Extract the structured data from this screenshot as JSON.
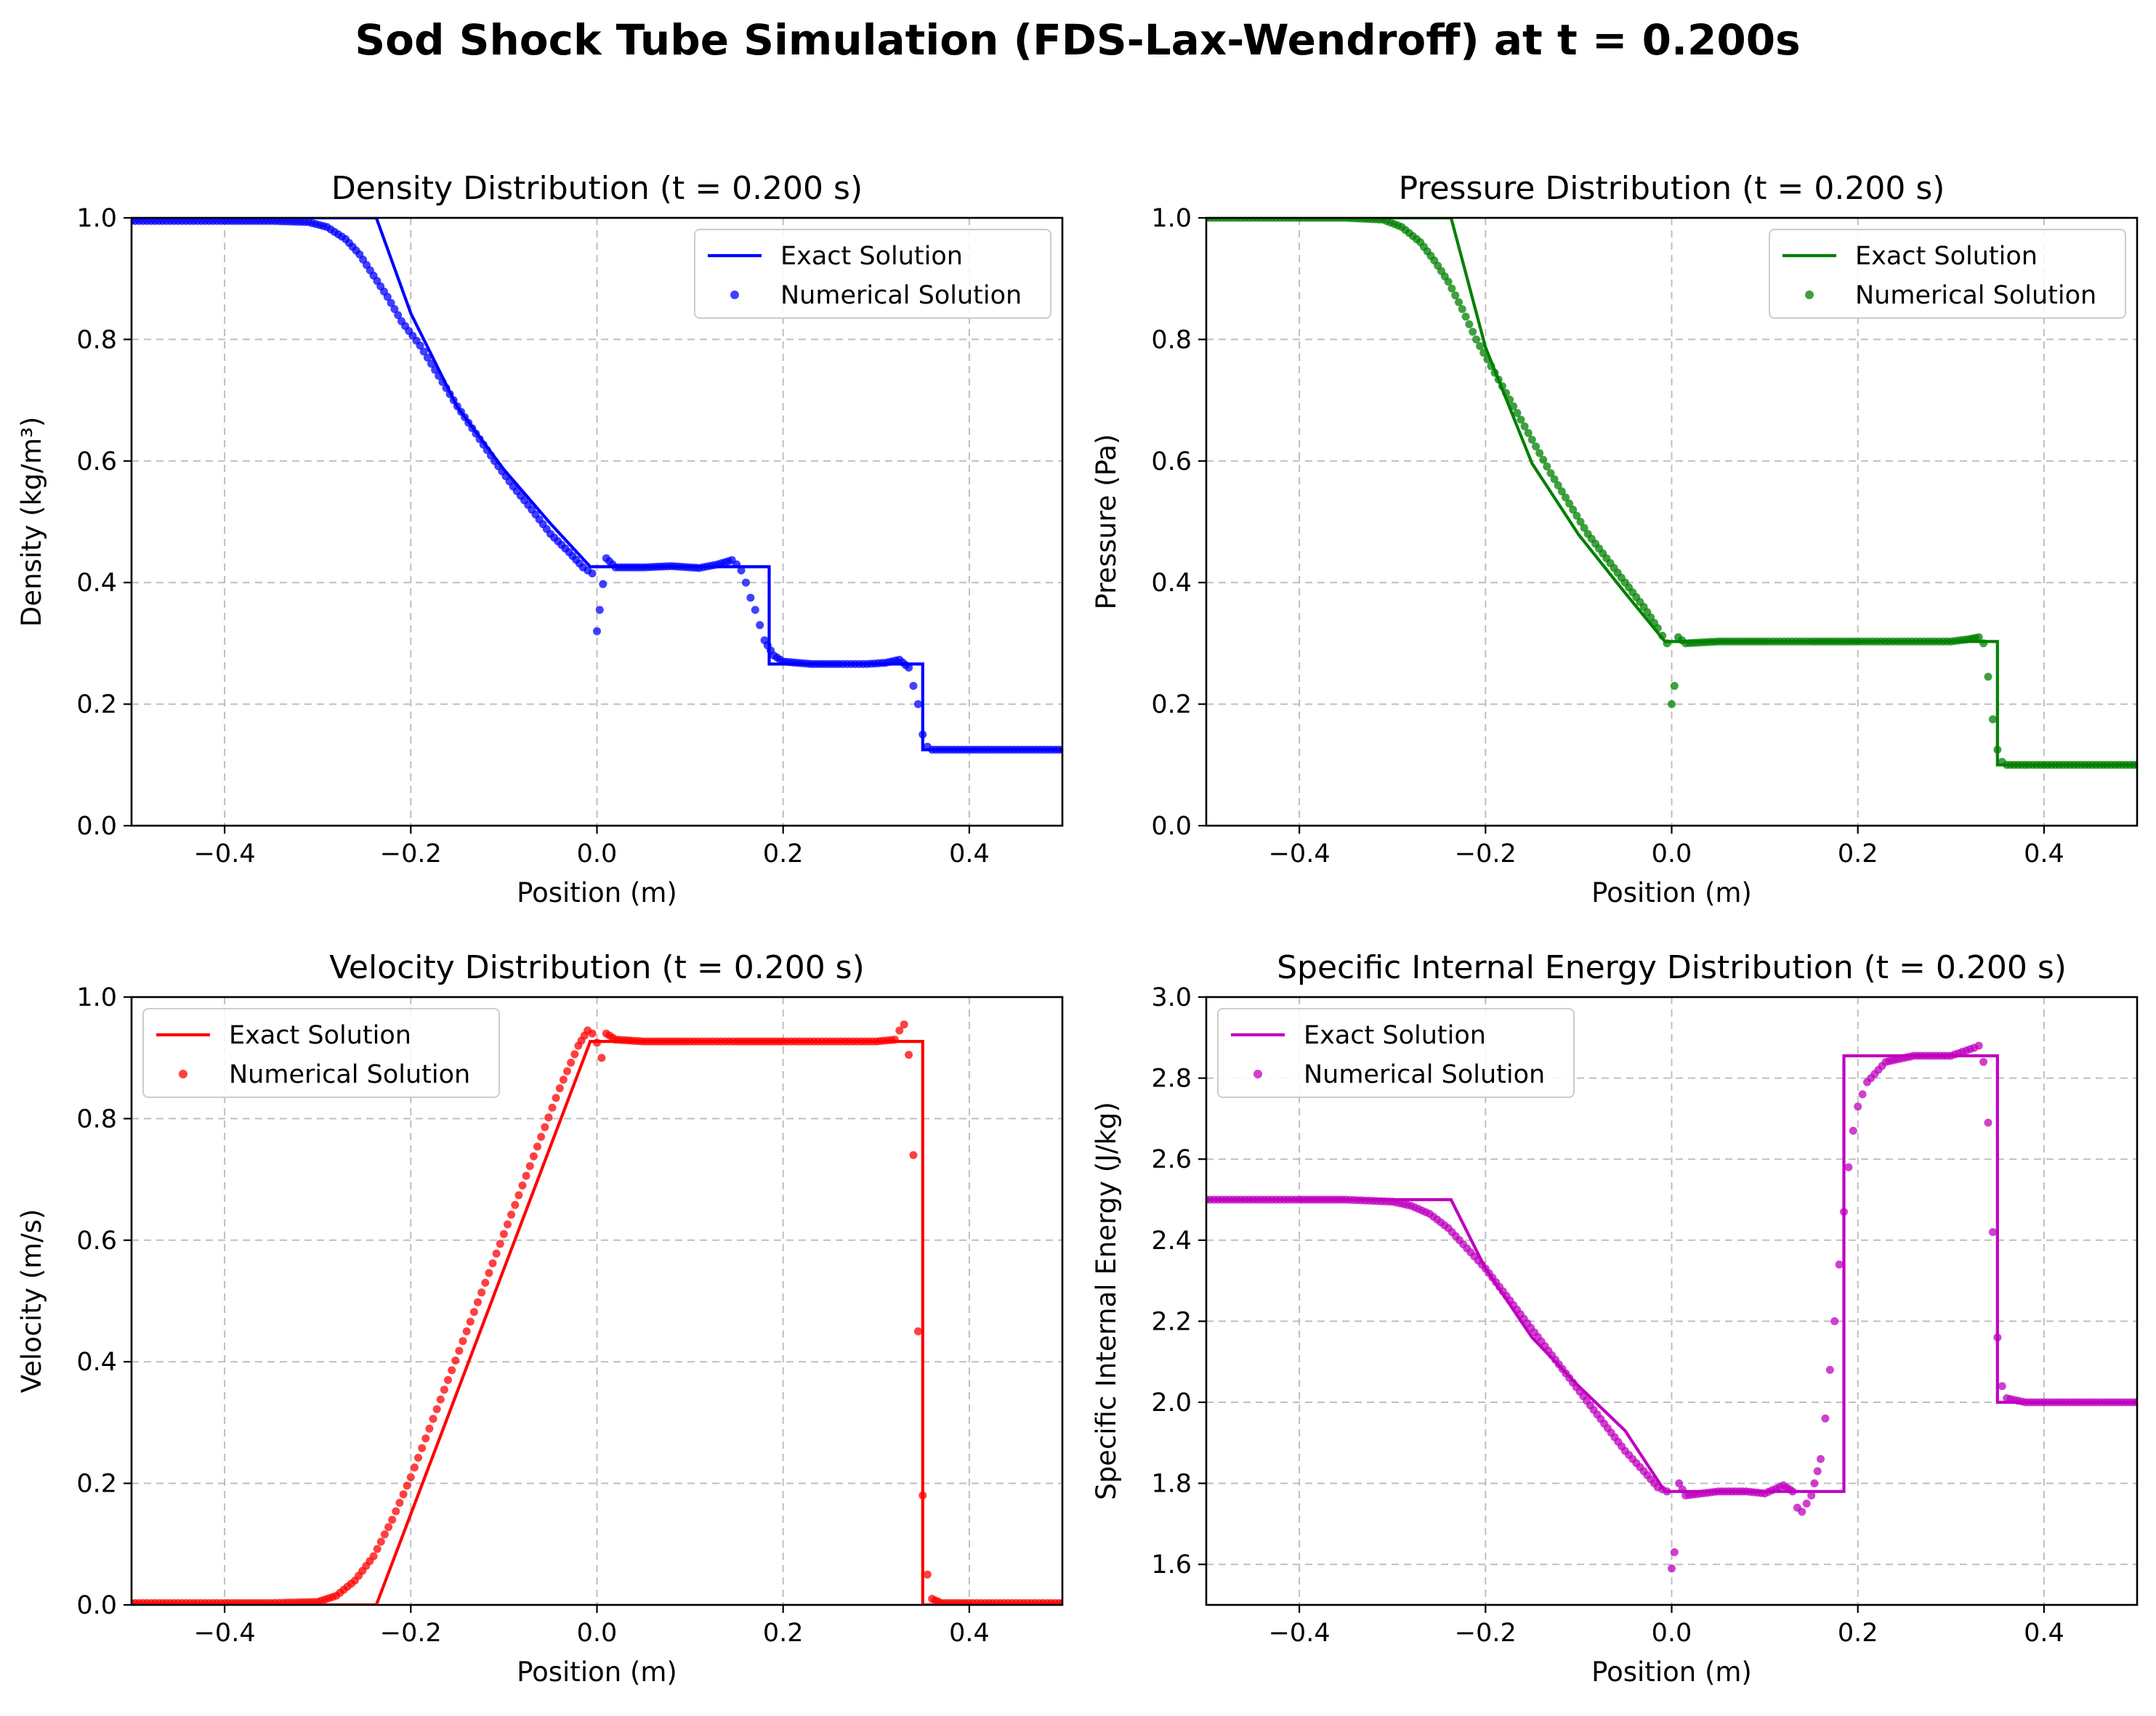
{
  "figure": {
    "title": "Sod Shock Tube Simulation (FDS-Lax-Wendroff) at t = 0.200s"
  },
  "chart_data": [
    {
      "type": "line",
      "title": "Density Distribution (t = 0.200 s)",
      "xlabel": "Position (m)",
      "ylabel": "Density (kg/m³)",
      "xlim": [
        -0.5,
        0.5
      ],
      "ylim": [
        0.0,
        1.0
      ],
      "xticks": [
        -0.4,
        -0.2,
        0.0,
        0.2,
        0.4
      ],
      "xtick_labels": [
        "−0.4",
        "−0.2",
        "0.0",
        "0.2",
        "0.4"
      ],
      "yticks": [
        0.0,
        0.2,
        0.4,
        0.6,
        0.8,
        1.0
      ],
      "ytick_labels": [
        "0.0",
        "0.2",
        "0.4",
        "0.6",
        "0.8",
        "1.0"
      ],
      "grid": true,
      "legend_position": "upper right",
      "color": "#0000ff",
      "series": [
        {
          "name": "Exact Solution",
          "kind": "line",
          "x": [
            -0.5,
            -0.237,
            -0.2,
            -0.15,
            -0.1,
            -0.05,
            -0.0072,
            0.185,
            0.185,
            0.35,
            0.35,
            0.5
          ],
          "y": [
            1.0,
            1.0,
            0.843,
            0.689,
            0.586,
            0.497,
            0.426,
            0.426,
            0.266,
            0.266,
            0.125,
            0.125
          ]
        },
        {
          "name": "Numerical Solution",
          "kind": "scatter",
          "x": [
            -0.5,
            -0.45,
            -0.4,
            -0.35,
            -0.31,
            -0.29,
            -0.27,
            -0.255,
            -0.24,
            -0.225,
            -0.21,
            -0.19,
            -0.17,
            -0.15,
            -0.13,
            -0.11,
            -0.09,
            -0.07,
            -0.05,
            -0.03,
            -0.015,
            -0.005,
            0.0,
            0.003,
            0.01,
            0.02,
            0.05,
            0.08,
            0.11,
            0.13,
            0.145,
            0.15,
            0.155,
            0.16,
            0.165,
            0.17,
            0.175,
            0.18,
            0.19,
            0.2,
            0.23,
            0.26,
            0.29,
            0.31,
            0.325,
            0.335,
            0.34,
            0.345,
            0.35,
            0.355,
            0.36,
            0.38,
            0.42,
            0.46,
            0.5
          ],
          "y": [
            0.995,
            0.995,
            0.995,
            0.995,
            0.993,
            0.985,
            0.965,
            0.94,
            0.905,
            0.87,
            0.83,
            0.79,
            0.74,
            0.69,
            0.645,
            0.6,
            0.558,
            0.52,
            0.48,
            0.45,
            0.425,
            0.415,
            0.32,
            0.355,
            0.44,
            0.425,
            0.425,
            0.427,
            0.424,
            0.43,
            0.437,
            0.43,
            0.42,
            0.4,
            0.375,
            0.355,
            0.33,
            0.305,
            0.28,
            0.27,
            0.266,
            0.266,
            0.266,
            0.268,
            0.273,
            0.26,
            0.23,
            0.2,
            0.15,
            0.13,
            0.125,
            0.125,
            0.125,
            0.125,
            0.125
          ]
        }
      ]
    },
    {
      "type": "line",
      "title": "Pressure Distribution (t = 0.200 s)",
      "xlabel": "Position (m)",
      "ylabel": "Pressure (Pa)",
      "xlim": [
        -0.5,
        0.5
      ],
      "ylim": [
        0.0,
        1.0
      ],
      "xticks": [
        -0.4,
        -0.2,
        0.0,
        0.2,
        0.4
      ],
      "xtick_labels": [
        "−0.4",
        "−0.2",
        "0.0",
        "0.2",
        "0.4"
      ],
      "yticks": [
        0.0,
        0.2,
        0.4,
        0.6,
        0.8,
        1.0
      ],
      "ytick_labels": [
        "0.0",
        "0.2",
        "0.4",
        "0.6",
        "0.8",
        "1.0"
      ],
      "grid": true,
      "legend_position": "upper right",
      "color": "#008000",
      "series": [
        {
          "name": "Exact Solution",
          "kind": "line",
          "x": [
            -0.5,
            -0.237,
            -0.2,
            -0.15,
            -0.1,
            -0.05,
            -0.0072,
            0.35,
            0.35,
            0.5
          ],
          "y": [
            1.0,
            1.0,
            0.787,
            0.596,
            0.479,
            0.383,
            0.303,
            0.303,
            0.1,
            0.1
          ]
        },
        {
          "name": "Numerical Solution",
          "kind": "scatter",
          "x": [
            -0.5,
            -0.45,
            -0.4,
            -0.35,
            -0.31,
            -0.29,
            -0.27,
            -0.255,
            -0.24,
            -0.225,
            -0.21,
            -0.19,
            -0.17,
            -0.15,
            -0.13,
            -0.11,
            -0.09,
            -0.07,
            -0.05,
            -0.03,
            -0.015,
            -0.005,
            0.0,
            0.003,
            0.007,
            0.015,
            0.05,
            0.1,
            0.15,
            0.2,
            0.25,
            0.3,
            0.32,
            0.33,
            0.335,
            0.34,
            0.345,
            0.35,
            0.355,
            0.36,
            0.38,
            0.42,
            0.46,
            0.5
          ],
          "y": [
            1.0,
            1.0,
            1.0,
            1.0,
            0.997,
            0.985,
            0.96,
            0.93,
            0.895,
            0.85,
            0.8,
            0.745,
            0.69,
            0.635,
            0.58,
            0.53,
            0.48,
            0.44,
            0.4,
            0.36,
            0.325,
            0.3,
            0.2,
            0.23,
            0.31,
            0.3,
            0.303,
            0.303,
            0.303,
            0.303,
            0.303,
            0.303,
            0.307,
            0.31,
            0.3,
            0.245,
            0.175,
            0.125,
            0.105,
            0.1,
            0.1,
            0.1,
            0.1,
            0.1
          ]
        }
      ]
    },
    {
      "type": "line",
      "title": "Velocity Distribution (t = 0.200 s)",
      "xlabel": "Position (m)",
      "ylabel": "Velocity (m/s)",
      "xlim": [
        -0.5,
        0.5
      ],
      "ylim": [
        0.0,
        1.0
      ],
      "xticks": [
        -0.4,
        -0.2,
        0.0,
        0.2,
        0.4
      ],
      "xtick_labels": [
        "−0.4",
        "−0.2",
        "0.0",
        "0.2",
        "0.4"
      ],
      "yticks": [
        0.0,
        0.2,
        0.4,
        0.6,
        0.8,
        1.0
      ],
      "ytick_labels": [
        "0.0",
        "0.2",
        "0.4",
        "0.6",
        "0.8",
        "1.0"
      ],
      "grid": true,
      "legend_position": "upper left",
      "color": "#ff0000",
      "series": [
        {
          "name": "Exact Solution",
          "kind": "line",
          "x": [
            -0.5,
            -0.237,
            -0.0072,
            0.35,
            0.35,
            0.5
          ],
          "y": [
            0.0,
            0.0,
            0.927,
            0.927,
            0.0,
            0.0
          ]
        },
        {
          "name": "Numerical Solution",
          "kind": "scatter",
          "x": [
            -0.5,
            -0.45,
            -0.4,
            -0.35,
            -0.3,
            -0.28,
            -0.26,
            -0.24,
            -0.22,
            -0.2,
            -0.18,
            -0.16,
            -0.14,
            -0.12,
            -0.1,
            -0.08,
            -0.06,
            -0.04,
            -0.02,
            -0.01,
            -0.005,
            0.0,
            0.005,
            0.01,
            0.02,
            0.05,
            0.1,
            0.15,
            0.2,
            0.25,
            0.3,
            0.32,
            0.325,
            0.33,
            0.335,
            0.34,
            0.345,
            0.35,
            0.355,
            0.36,
            0.37,
            0.4,
            0.45,
            0.5
          ],
          "y": [
            0.003,
            0.003,
            0.003,
            0.003,
            0.005,
            0.015,
            0.04,
            0.08,
            0.14,
            0.21,
            0.29,
            0.37,
            0.45,
            0.53,
            0.61,
            0.69,
            0.77,
            0.85,
            0.92,
            0.945,
            0.94,
            0.925,
            0.9,
            0.94,
            0.93,
            0.927,
            0.927,
            0.927,
            0.927,
            0.927,
            0.927,
            0.93,
            0.945,
            0.955,
            0.905,
            0.74,
            0.45,
            0.18,
            0.05,
            0.01,
            0.003,
            0.003,
            0.003,
            0.003
          ]
        }
      ]
    },
    {
      "type": "line",
      "title": "Specific Internal Energy Distribution (t = 0.200 s)",
      "xlabel": "Position (m)",
      "ylabel": "Specific Internal Energy (J/kg)",
      "xlim": [
        -0.5,
        0.5
      ],
      "ylim": [
        1.5,
        3.0
      ],
      "xticks": [
        -0.4,
        -0.2,
        0.0,
        0.2,
        0.4
      ],
      "xtick_labels": [
        "−0.4",
        "−0.2",
        "0.0",
        "0.2",
        "0.4"
      ],
      "yticks": [
        1.6,
        1.8,
        2.0,
        2.2,
        2.4,
        2.6,
        2.8,
        3.0
      ],
      "ytick_labels": [
        "1.6",
        "1.8",
        "2.0",
        "2.2",
        "2.4",
        "2.6",
        "2.8",
        "3.0"
      ],
      "grid": true,
      "legend_position": "upper left",
      "color": "#bf00bf",
      "series": [
        {
          "name": "Exact Solution",
          "kind": "line",
          "x": [
            -0.5,
            -0.237,
            -0.2,
            -0.15,
            -0.1,
            -0.05,
            -0.0072,
            0.185,
            0.185,
            0.35,
            0.35,
            0.5
          ],
          "y": [
            2.5,
            2.5,
            2.33,
            2.16,
            2.04,
            1.93,
            1.78,
            1.78,
            2.855,
            2.855,
            2.0,
            2.0
          ]
        },
        {
          "name": "Numerical Solution",
          "kind": "scatter",
          "x": [
            -0.5,
            -0.45,
            -0.4,
            -0.35,
            -0.3,
            -0.28,
            -0.26,
            -0.24,
            -0.22,
            -0.2,
            -0.17,
            -0.14,
            -0.11,
            -0.08,
            -0.05,
            -0.03,
            -0.015,
            -0.005,
            0.0,
            0.003,
            0.008,
            0.015,
            0.05,
            0.08,
            0.1,
            0.12,
            0.13,
            0.135,
            0.14,
            0.15,
            0.16,
            0.165,
            0.17,
            0.175,
            0.18,
            0.185,
            0.19,
            0.195,
            0.2,
            0.21,
            0.23,
            0.26,
            0.3,
            0.325,
            0.33,
            0.335,
            0.34,
            0.345,
            0.35,
            0.355,
            0.36,
            0.38,
            0.42,
            0.46,
            0.5
          ],
          "y": [
            2.5,
            2.5,
            2.5,
            2.5,
            2.495,
            2.485,
            2.465,
            2.43,
            2.38,
            2.33,
            2.24,
            2.15,
            2.06,
            1.97,
            1.88,
            1.83,
            1.79,
            1.78,
            1.59,
            1.63,
            1.8,
            1.77,
            1.78,
            1.78,
            1.775,
            1.795,
            1.78,
            1.74,
            1.73,
            1.77,
            1.86,
            1.96,
            2.08,
            2.2,
            2.34,
            2.47,
            2.58,
            2.67,
            2.73,
            2.79,
            2.84,
            2.855,
            2.855,
            2.875,
            2.88,
            2.84,
            2.69,
            2.42,
            2.16,
            2.04,
            2.01,
            2.0,
            2.0,
            2.0,
            2.0
          ]
        }
      ]
    }
  ]
}
